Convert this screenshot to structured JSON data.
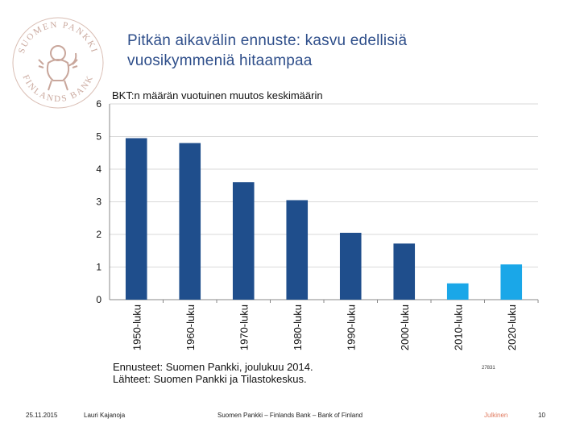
{
  "slide": {
    "title_lines": [
      "Pitkän aikavälin ennuste: kasvu edellisiä",
      "vuosikymmeniä hitaampaa"
    ],
    "logo": {
      "icon": "lion-crest-icon",
      "ring_text_top": "SUOMEN PANKKI",
      "ring_text_bottom": "FINLANDS BANK",
      "color": "#c9a79c"
    }
  },
  "chart_data": {
    "type": "bar",
    "title": "BKT:n määrän vuotuinen muutos keskimäärin",
    "categories": [
      "1950-luku",
      "1960-luku",
      "1970-luku",
      "1980-luku",
      "1990-luku",
      "2000-luku",
      "2010-luku",
      "2020-luku"
    ],
    "values": [
      4.95,
      4.8,
      3.6,
      3.05,
      2.05,
      1.72,
      0.5,
      1.08
    ],
    "is_forecast": [
      false,
      false,
      false,
      false,
      false,
      false,
      true,
      true
    ],
    "colors": {
      "actual": "#1f4e8c",
      "forecast": "#1aa7e8"
    },
    "ylim": [
      0,
      6
    ],
    "yticks": [
      "0",
      "1",
      "2",
      "3",
      "4",
      "5",
      "6"
    ],
    "grid": true,
    "xlabel": "",
    "ylabel": ""
  },
  "notes": {
    "line1": "Ennusteet: Suomen Pankki, joulukuu 2014.",
    "line2": "Lähteet: Suomen Pankki ja Tilastokeskus.",
    "chart_code": "27831"
  },
  "footer": {
    "date": "25.11.2015",
    "author": "Lauri Kajanoja",
    "organization": "Suomen Pankki – Finlands Bank – Bank of Finland",
    "classification": "Julkinen",
    "page": "10"
  }
}
